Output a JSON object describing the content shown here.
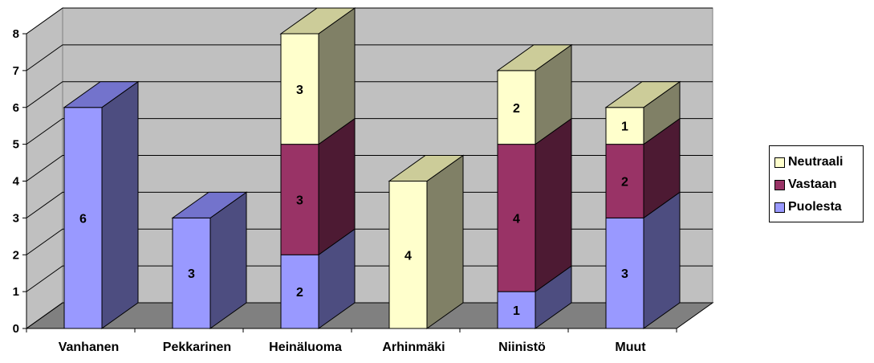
{
  "chart_data": {
    "type": "bar",
    "stacked": true,
    "three_d": true,
    "categories": [
      "Vanhanen",
      "Pekkarinen",
      "Heinäluoma",
      "Arhinmäki",
      "Niinistö",
      "Muut"
    ],
    "series": [
      {
        "name": "Puolesta",
        "values": [
          6,
          3,
          2,
          0,
          1,
          3
        ],
        "labels": [
          "6",
          "3",
          "2",
          "",
          "1",
          "3"
        ],
        "color": "#9999ff",
        "side": "#4d4d80",
        "top": "#7373cc"
      },
      {
        "name": "Vastaan",
        "values": [
          0,
          0,
          3,
          0,
          4,
          2
        ],
        "labels": [
          "",
          "",
          "3",
          "",
          "4",
          "2"
        ],
        "color": "#993366",
        "side": "#4d1a33",
        "top": "#732650"
      },
      {
        "name": "Neutraali",
        "values": [
          0,
          0,
          3,
          4,
          2,
          1
        ],
        "labels": [
          "",
          "",
          "3",
          "4",
          "2",
          "1"
        ],
        "color": "#ffffcc",
        "side": "#808066",
        "top": "#cccc99"
      }
    ],
    "y_ticks": [
      "0",
      "1",
      "2",
      "3",
      "4",
      "5",
      "6",
      "7",
      "8"
    ],
    "ylim": [
      0,
      8
    ],
    "grid": true,
    "legend": "right"
  },
  "legend": {
    "items": [
      {
        "label": "Neutraali",
        "color": "#ffffcc"
      },
      {
        "label": "Vastaan",
        "color": "#993366"
      },
      {
        "label": "Puolesta",
        "color": "#9999ff"
      }
    ]
  }
}
